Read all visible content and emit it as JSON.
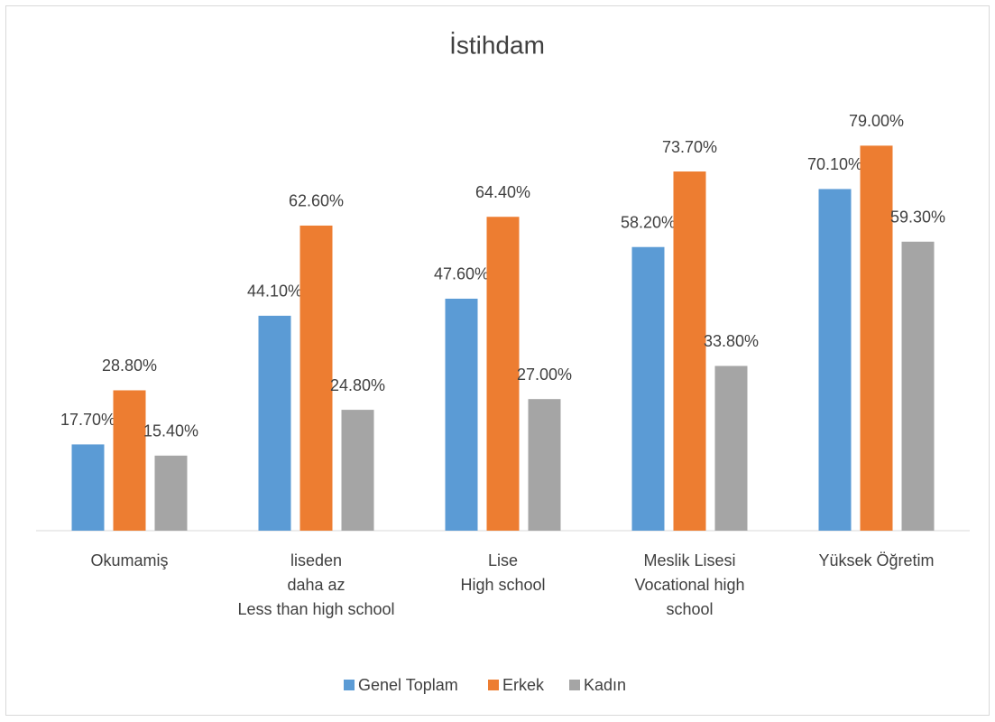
{
  "chart_data": {
    "type": "bar",
    "title": "İstihdam",
    "categories": [
      [
        "Okumamiş"
      ],
      [
        "liseden",
        "daha az",
        "Less than high school"
      ],
      [
        "Lise",
        "High school"
      ],
      [
        "Meslik Lisesi",
        "Vocational high",
        "school"
      ],
      [
        "Yüksek Öğretim"
      ]
    ],
    "series": [
      {
        "name": "Genel Toplam",
        "color": "#5b9bd5",
        "values": [
          17.7,
          44.1,
          47.6,
          58.2,
          70.1
        ],
        "value_labels": [
          "17.70%",
          "44.10%",
          "47.60%",
          "58.20%",
          "70.10%"
        ]
      },
      {
        "name": "Erkek",
        "color": "#ed7d31",
        "values": [
          28.8,
          62.6,
          64.4,
          73.7,
          79.0
        ],
        "value_labels": [
          "28.80%",
          "62.60%",
          "64.40%",
          "73.70%",
          "79.00%"
        ]
      },
      {
        "name": "Kadın",
        "color": "#a5a5a5",
        "values": [
          15.4,
          24.8,
          27.0,
          33.8,
          59.3
        ],
        "value_labels": [
          "15.40%",
          "24.80%",
          "27.00%",
          "33.80%",
          "59.30%"
        ]
      }
    ],
    "ylim": [
      0,
      90
    ],
    "legend": "bottom"
  }
}
